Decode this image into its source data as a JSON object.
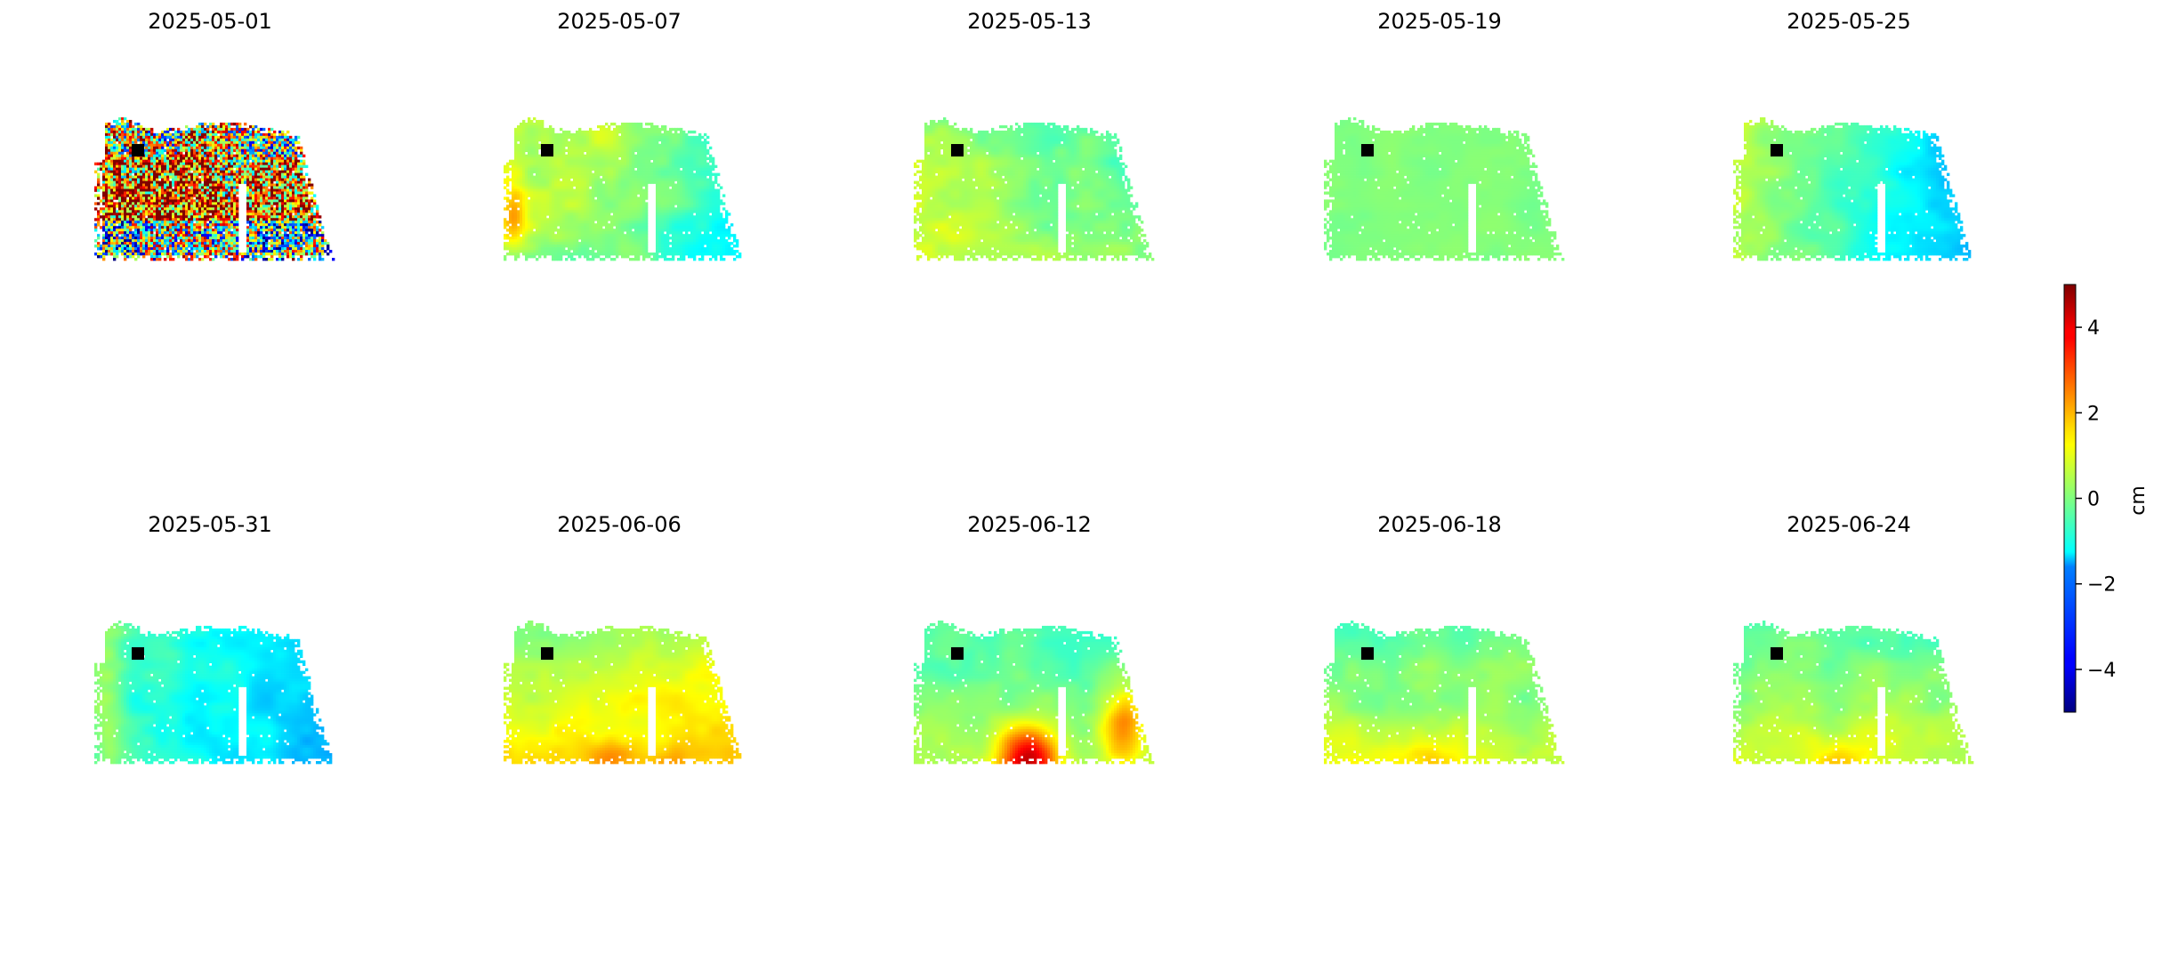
{
  "chart_data": {
    "type": "heatmap",
    "description_of_layout": "",
    "rows": 2,
    "columns": 5,
    "panels": [
      {
        "title": "2025-05-01",
        "pattern": "noisy"
      },
      {
        "title": "2025-05-07",
        "pattern": "west-positive-east-negative"
      },
      {
        "title": "2025-05-13",
        "pattern": "mild-gradient"
      },
      {
        "title": "2025-05-19",
        "pattern": "near-zero"
      },
      {
        "title": "2025-05-25",
        "pattern": "east-negative"
      },
      {
        "title": "2025-05-31",
        "pattern": "negative-southeast"
      },
      {
        "title": "2025-06-06",
        "pattern": "south-positive"
      },
      {
        "title": "2025-06-12",
        "pattern": "strong-south-positive"
      },
      {
        "title": "2025-06-18",
        "pattern": "slight-south-positive"
      },
      {
        "title": "2025-06-24",
        "pattern": "slight-south-positive"
      }
    ],
    "reference_point_marker": "black square",
    "colorbar": {
      "label": "cm",
      "colormap": "jet",
      "vmin": -5,
      "vmax": 5,
      "ticks": [
        4,
        2,
        0,
        -2,
        -4
      ],
      "tick_labels": [
        "4",
        "2",
        "0",
        "−2",
        "−4"
      ]
    }
  },
  "colors": {
    "background": "#ffffff",
    "marker": "#000000",
    "text": "#000000"
  }
}
